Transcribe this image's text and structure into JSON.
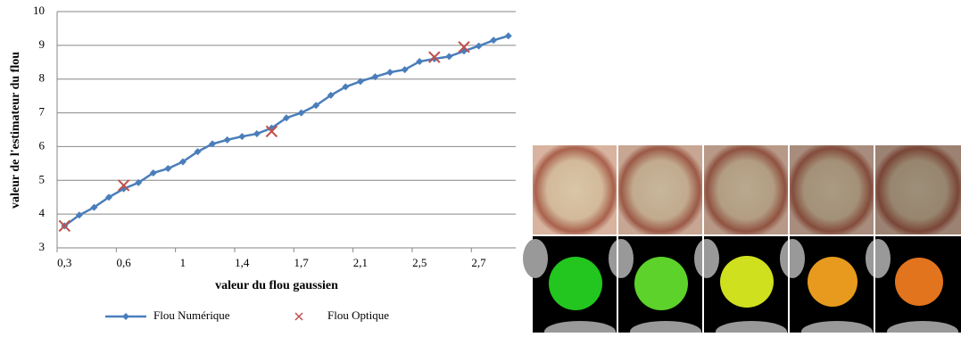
{
  "chart_data": {
    "type": "line",
    "x_label": "valeur du flou gaussien",
    "y_label": "valeur de l'estimateur du flou",
    "categories": [
      "0,3",
      null,
      null,
      null,
      "0,6",
      null,
      null,
      null,
      "1",
      null,
      null,
      null,
      "1,4",
      null,
      null,
      null,
      "1,7",
      null,
      null,
      null,
      "2,1",
      null,
      null,
      null,
      "2,5",
      null,
      null,
      null,
      "2,7",
      null,
      null
    ],
    "series": [
      {
        "name": "Flou Numérique",
        "color": "#4a7ebb",
        "marker": "diamond",
        "values": [
          3.65,
          3.97,
          4.2,
          4.5,
          4.75,
          4.93,
          5.22,
          5.35,
          5.55,
          5.85,
          6.08,
          6.2,
          6.3,
          6.38,
          6.55,
          6.85,
          7.0,
          7.22,
          7.52,
          7.77,
          7.93,
          8.07,
          8.2,
          8.28,
          8.52,
          8.6,
          8.67,
          8.83,
          8.98,
          9.15,
          9.28
        ]
      },
      {
        "name": "Flou Optique",
        "color": "#c0504d",
        "marker": "cross",
        "values": [
          3.65,
          null,
          null,
          null,
          4.85,
          null,
          null,
          null,
          null,
          null,
          null,
          null,
          null,
          null,
          6.45,
          null,
          null,
          null,
          null,
          null,
          null,
          null,
          null,
          null,
          null,
          8.65,
          null,
          8.95,
          null,
          null,
          null
        ]
      }
    ],
    "ylim": [
      3,
      10
    ],
    "yticks": [
      3,
      4,
      5,
      6,
      7,
      8,
      9,
      10
    ],
    "grid": true,
    "legend": "bottom"
  }
}
